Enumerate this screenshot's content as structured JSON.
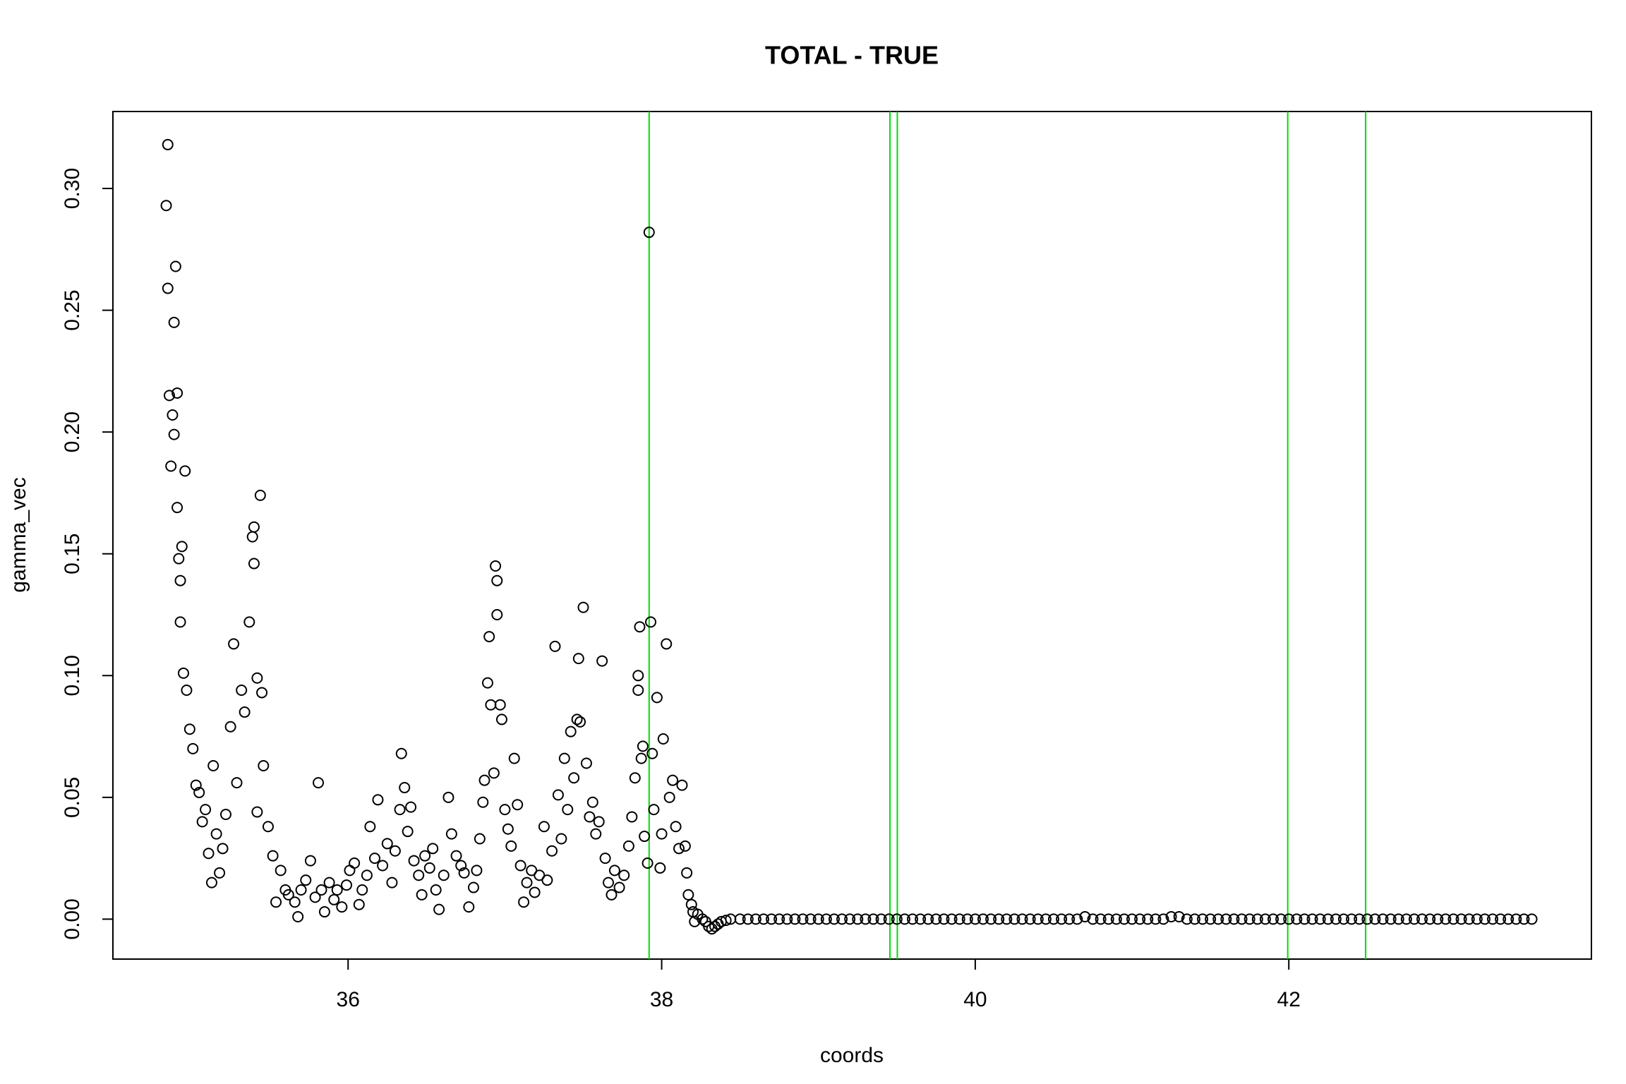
{
  "chart_data": {
    "type": "scatter",
    "title": "TOTAL - TRUE",
    "xlabel": "coords",
    "ylabel": "gamma_vec",
    "xlim": [
      34.5,
      43.93
    ],
    "ylim": [
      -0.0164,
      0.3316
    ],
    "xticks": [
      36,
      38,
      40,
      42
    ],
    "yticks": [
      {
        "value": 0,
        "label": "0.00"
      },
      {
        "value": 0.05,
        "label": "0.05"
      },
      {
        "value": 0.1,
        "label": "0.10"
      },
      {
        "value": 0.15,
        "label": "0.15"
      },
      {
        "value": 0.2,
        "label": "0.20"
      },
      {
        "value": 0.25,
        "label": "0.25"
      },
      {
        "value": 0.3,
        "label": "0.30"
      }
    ],
    "color": "#000000",
    "vlines": {
      "color": "#00dd00",
      "values": [
        37.92,
        39.456,
        39.503,
        41.993,
        42.49
      ]
    },
    "x": [
      34.84,
      34.85,
      34.85,
      34.86,
      34.87,
      34.88,
      34.89,
      34.89,
      34.9,
      34.91,
      34.91,
      34.92,
      34.93,
      34.93,
      34.94,
      34.95,
      34.96,
      34.97,
      34.99,
      35.01,
      35.03,
      35.05,
      35.07,
      35.09,
      35.11,
      35.13,
      35.14,
      35.16,
      35.18,
      35.2,
      35.22,
      35.25,
      35.27,
      35.29,
      35.32,
      35.34,
      35.37,
      35.39,
      35.4,
      35.4,
      35.42,
      35.42,
      35.44,
      35.45,
      35.46,
      35.49,
      35.52,
      35.54,
      35.57,
      35.6,
      35.62,
      35.66,
      35.68,
      35.7,
      35.73,
      35.76,
      35.79,
      35.81,
      35.83,
      35.85,
      35.88,
      35.91,
      35.93,
      35.96,
      35.99,
      36.01,
      36.04,
      36.07,
      36.09,
      36.12,
      36.14,
      36.17,
      36.19,
      36.22,
      36.25,
      36.28,
      36.3,
      36.33,
      36.34,
      36.36,
      36.38,
      36.4,
      36.42,
      36.45,
      36.47,
      36.49,
      36.52,
      36.54,
      36.56,
      36.58,
      36.61,
      36.64,
      36.66,
      36.69,
      36.72,
      36.74,
      36.77,
      36.8,
      36.82,
      36.84,
      36.86,
      36.87,
      36.89,
      36.9,
      36.91,
      36.93,
      36.94,
      36.95,
      36.95,
      36.97,
      36.98,
      37.0,
      37.02,
      37.04,
      37.06,
      37.08,
      37.1,
      37.12,
      37.14,
      37.17,
      37.19,
      37.22,
      37.25,
      37.27,
      37.3,
      37.32,
      37.34,
      37.36,
      37.38,
      37.4,
      37.42,
      37.44,
      37.46,
      37.47,
      37.48,
      37.5,
      37.52,
      37.54,
      37.56,
      37.58,
      37.6,
      37.62,
      37.64,
      37.66,
      37.68,
      37.7,
      37.73,
      37.76,
      37.79,
      37.81,
      37.83,
      37.85,
      37.85,
      37.86,
      37.87,
      37.88,
      37.89,
      37.91,
      37.92,
      37.93,
      37.94,
      37.95,
      37.97,
      37.99,
      38.0,
      38.01,
      38.03,
      38.05,
      38.07,
      38.09,
      38.11,
      38.13,
      38.15,
      38.16,
      38.17,
      38.19,
      38.2,
      38.21,
      38.23,
      38.26,
      38.28,
      38.3,
      38.32,
      38.34,
      38.36,
      38.38,
      38.41,
      38.44,
      38.5,
      38.55,
      38.6,
      38.65,
      38.7,
      38.75,
      38.8,
      38.85,
      38.9,
      38.95,
      39.0,
      39.05,
      39.1,
      39.15,
      39.2,
      39.25,
      39.3,
      39.35,
      39.4,
      39.45,
      39.5,
      39.55,
      39.6,
      39.65,
      39.7,
      39.75,
      39.8,
      39.85,
      39.9,
      39.95,
      40.0,
      40.05,
      40.1,
      40.15,
      40.2,
      40.25,
      40.3,
      40.35,
      40.4,
      40.45,
      40.5,
      40.55,
      40.6,
      40.65,
      40.7,
      40.75,
      40.8,
      40.85,
      40.9,
      40.95,
      41.0,
      41.05,
      41.1,
      41.15,
      41.2,
      41.25,
      41.3,
      41.35,
      41.4,
      41.45,
      41.5,
      41.55,
      41.6,
      41.65,
      41.7,
      41.75,
      41.8,
      41.85,
      41.9,
      41.95,
      42.0,
      42.05,
      42.1,
      42.15,
      42.2,
      42.25,
      42.3,
      42.35,
      42.4,
      42.45,
      42.5,
      42.55,
      42.6,
      42.65,
      42.7,
      42.75,
      42.8,
      42.85,
      42.9,
      42.95,
      43.0,
      43.05,
      43.1,
      43.15,
      43.2,
      43.25,
      43.3,
      43.35,
      43.4,
      43.45,
      43.5,
      43.55
    ],
    "values": [
      0.293,
      0.259,
      0.318,
      0.215,
      0.186,
      0.207,
      0.199,
      0.245,
      0.268,
      0.216,
      0.169,
      0.148,
      0.122,
      0.139,
      0.153,
      0.101,
      0.184,
      0.094,
      0.078,
      0.07,
      0.055,
      0.052,
      0.04,
      0.045,
      0.027,
      0.015,
      0.063,
      0.035,
      0.019,
      0.029,
      0.043,
      0.079,
      0.113,
      0.056,
      0.094,
      0.085,
      0.122,
      0.157,
      0.161,
      0.146,
      0.099,
      0.044,
      0.174,
      0.093,
      0.063,
      0.038,
      0.026,
      0.007,
      0.02,
      0.012,
      0.01,
      0.007,
      0.001,
      0.012,
      0.016,
      0.024,
      0.009,
      0.056,
      0.012,
      0.003,
      0.015,
      0.008,
      0.012,
      0.005,
      0.014,
      0.02,
      0.023,
      0.006,
      0.012,
      0.018,
      0.038,
      0.025,
      0.049,
      0.022,
      0.031,
      0.015,
      0.028,
      0.045,
      0.068,
      0.054,
      0.036,
      0.046,
      0.024,
      0.018,
      0.01,
      0.026,
      0.021,
      0.029,
      0.012,
      0.004,
      0.018,
      0.05,
      0.035,
      0.026,
      0.022,
      0.019,
      0.005,
      0.013,
      0.02,
      0.033,
      0.048,
      0.057,
      0.097,
      0.116,
      0.088,
      0.06,
      0.145,
      0.139,
      0.125,
      0.088,
      0.082,
      0.045,
      0.037,
      0.03,
      0.066,
      0.047,
      0.022,
      0.007,
      0.015,
      0.02,
      0.011,
      0.018,
      0.038,
      0.016,
      0.028,
      0.112,
      0.051,
      0.033,
      0.066,
      0.045,
      0.077,
      0.058,
      0.082,
      0.107,
      0.081,
      0.128,
      0.064,
      0.042,
      0.048,
      0.035,
      0.04,
      0.106,
      0.025,
      0.015,
      0.01,
      0.02,
      0.013,
      0.018,
      0.03,
      0.042,
      0.058,
      0.1,
      0.094,
      0.12,
      0.066,
      0.071,
      0.034,
      0.023,
      0.282,
      0.122,
      0.068,
      0.045,
      0.091,
      0.021,
      0.035,
      0.074,
      0.113,
      0.05,
      0.057,
      0.038,
      0.029,
      0.055,
      0.03,
      0.019,
      0.01,
      0.006,
      0.003,
      -0.001,
      0.002,
      0.0,
      -0.001,
      -0.003,
      -0.004,
      -0.003,
      -0.002,
      -0.001,
      -0.0005,
      0.0,
      0,
      0,
      0,
      0,
      0,
      0,
      0,
      0,
      0,
      0,
      0,
      0,
      0,
      0,
      0,
      0,
      0,
      0,
      0,
      0,
      0,
      0,
      0,
      0,
      0,
      0,
      0,
      0,
      0,
      0,
      0,
      0,
      0,
      0,
      0,
      0,
      0,
      0,
      0,
      0,
      0,
      0,
      0,
      0,
      0.001,
      0,
      0,
      0,
      0,
      0,
      0,
      0,
      0,
      0,
      0,
      0.001,
      0.001,
      0,
      0,
      0,
      0,
      0,
      0,
      0,
      0,
      0,
      0,
      0,
      0,
      0,
      0,
      0,
      0,
      0,
      0,
      0,
      0,
      0,
      0,
      0,
      0,
      0,
      0,
      0,
      0,
      0,
      0,
      0,
      0,
      0,
      0,
      0,
      0,
      0,
      0,
      0,
      0,
      0,
      0,
      0,
      0,
      0
    ]
  }
}
